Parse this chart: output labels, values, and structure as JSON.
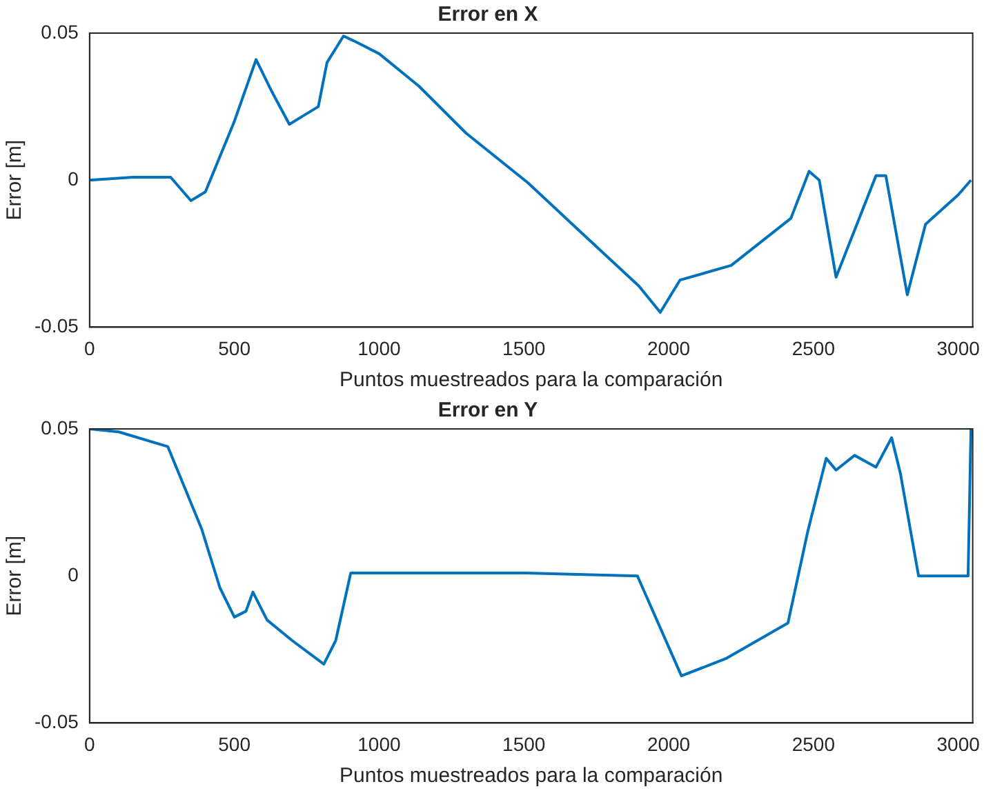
{
  "chart_data": [
    {
      "type": "line",
      "title": "Error en X",
      "xlabel": "Puntos muestreados para la comparación",
      "ylabel": "Error [m]",
      "xlim": [
        0,
        3050
      ],
      "xticks": [
        0,
        500,
        1000,
        1500,
        2000,
        2500,
        3000
      ],
      "ylim": [
        -0.05,
        0.05
      ],
      "yticks": [
        -0.05,
        0,
        0.05
      ],
      "grid": false,
      "legend": false,
      "marker": "none",
      "series": [
        {
          "color": "#0072bd",
          "x": [
            0,
            150,
            280,
            350,
            400,
            500,
            575,
            630,
            690,
            740,
            790,
            820,
            877,
            920,
            1000,
            1137,
            1300,
            1515,
            1700,
            1897,
            1971,
            2039,
            2216,
            2422,
            2485,
            2520,
            2578,
            2650,
            2716,
            2750,
            2824,
            2887,
            3000,
            3044
          ],
          "values": [
            0,
            0.001,
            0.001,
            -0.007,
            -0.004,
            0.02,
            0.041,
            0.03,
            0.019,
            0.022,
            0.025,
            0.04,
            0.049,
            0.047,
            0.043,
            0.032,
            0.016,
            -0.001,
            -0.018,
            -0.036,
            -0.045,
            -0.034,
            -0.029,
            -0.013,
            0.003,
            0,
            -0.033,
            -0.015,
            0.0015,
            0.0015,
            -0.039,
            -0.015,
            -0.005,
            0
          ]
        }
      ]
    },
    {
      "type": "line",
      "title": "Error en Y",
      "xlabel": "Puntos muestreados para la comparación",
      "ylabel": "Error [m]",
      "xlim": [
        0,
        3050
      ],
      "xticks": [
        0,
        500,
        1000,
        1500,
        2000,
        2500,
        3000
      ],
      "ylim": [
        -0.05,
        0.05
      ],
      "yticks": [
        -0.05,
        0,
        0.05
      ],
      "grid": false,
      "legend": false,
      "marker": "none",
      "series": [
        {
          "color": "#0072bd",
          "x": [
            0,
            100,
            270,
            387,
            450,
            500,
            540,
            564,
            613,
            700,
            809,
            850,
            902,
            1200,
            1500,
            1892,
            2044,
            2200,
            2412,
            2480,
            2544,
            2578,
            2642,
            2716,
            2770,
            2800,
            2863,
            2950,
            3034,
            3044
          ],
          "values": [
            0.05,
            0.049,
            0.044,
            0.016,
            -0.004,
            -0.014,
            -0.012,
            -0.0055,
            -0.015,
            -0.022,
            -0.03,
            -0.022,
            0.001,
            0.001,
            0.001,
            0,
            -0.034,
            -0.028,
            -0.016,
            0.015,
            0.04,
            0.036,
            0.041,
            0.037,
            0.047,
            0.035,
            0,
            0,
            0,
            0.05
          ]
        }
      ]
    }
  ]
}
